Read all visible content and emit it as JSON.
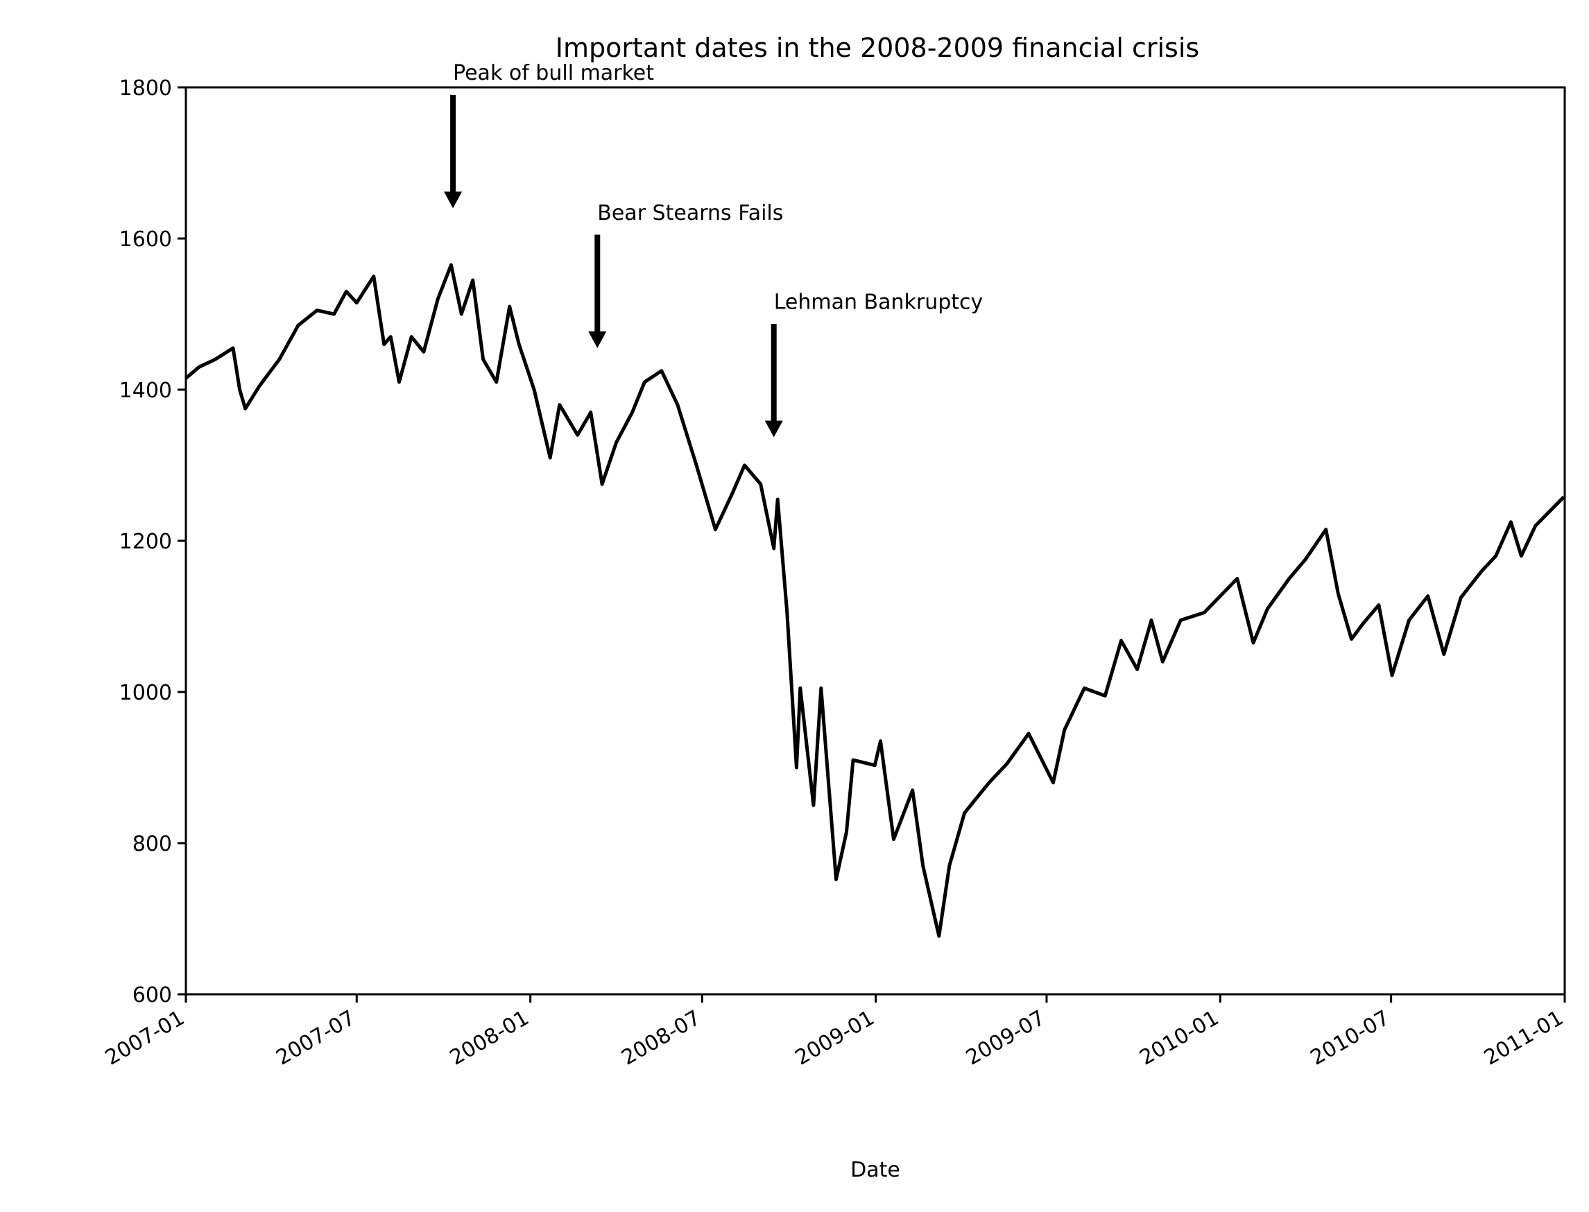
{
  "chart_data": {
    "type": "line",
    "title": "Important dates in the 2008-2009 financial crisis",
    "xlabel": "Date",
    "ylabel": "",
    "xlim": [
      "2007-01-01",
      "2011-01-01"
    ],
    "ylim": [
      600,
      1800
    ],
    "x_ticks": [
      "2007-01",
      "2007-07",
      "2008-01",
      "2008-07",
      "2009-01",
      "2009-07",
      "2010-01",
      "2010-07",
      "2011-01"
    ],
    "y_ticks": [
      600,
      800,
      1000,
      1200,
      1400,
      1600,
      1800
    ],
    "grid": false,
    "line_color": "#000000",
    "series": [
      {
        "name": "",
        "points": [
          [
            "2007-01-01",
            1415
          ],
          [
            "2007-01-15",
            1430
          ],
          [
            "2007-02-01",
            1440
          ],
          [
            "2007-02-20",
            1455
          ],
          [
            "2007-02-27",
            1400
          ],
          [
            "2007-03-05",
            1375
          ],
          [
            "2007-03-20",
            1405
          ],
          [
            "2007-04-10",
            1440
          ],
          [
            "2007-04-30",
            1485
          ],
          [
            "2007-05-20",
            1505
          ],
          [
            "2007-06-07",
            1500
          ],
          [
            "2007-06-20",
            1530
          ],
          [
            "2007-07-01",
            1515
          ],
          [
            "2007-07-19",
            1550
          ],
          [
            "2007-07-30",
            1460
          ],
          [
            "2007-08-06",
            1470
          ],
          [
            "2007-08-15",
            1410
          ],
          [
            "2007-08-28",
            1470
          ],
          [
            "2007-09-10",
            1450
          ],
          [
            "2007-09-25",
            1520
          ],
          [
            "2007-10-09",
            1565
          ],
          [
            "2007-10-20",
            1500
          ],
          [
            "2007-11-01",
            1545
          ],
          [
            "2007-11-12",
            1440
          ],
          [
            "2007-11-26",
            1410
          ],
          [
            "2007-12-10",
            1510
          ],
          [
            "2007-12-20",
            1460
          ],
          [
            "2008-01-05",
            1400
          ],
          [
            "2008-01-22",
            1310
          ],
          [
            "2008-02-01",
            1380
          ],
          [
            "2008-02-20",
            1340
          ],
          [
            "2008-03-05",
            1370
          ],
          [
            "2008-03-17",
            1275
          ],
          [
            "2008-04-01",
            1330
          ],
          [
            "2008-04-18",
            1370
          ],
          [
            "2008-05-01",
            1410
          ],
          [
            "2008-05-19",
            1425
          ],
          [
            "2008-06-05",
            1380
          ],
          [
            "2008-06-25",
            1300
          ],
          [
            "2008-07-15",
            1215
          ],
          [
            "2008-08-01",
            1260
          ],
          [
            "2008-08-15",
            1300
          ],
          [
            "2008-09-01",
            1275
          ],
          [
            "2008-09-15",
            1190
          ],
          [
            "2008-09-19",
            1255
          ],
          [
            "2008-09-29",
            1105
          ],
          [
            "2008-10-09",
            900
          ],
          [
            "2008-10-13",
            1005
          ],
          [
            "2008-10-27",
            850
          ],
          [
            "2008-11-04",
            1005
          ],
          [
            "2008-11-20",
            752
          ],
          [
            "2008-12-01",
            815
          ],
          [
            "2008-12-08",
            910
          ],
          [
            "2008-12-31",
            903
          ],
          [
            "2009-01-06",
            935
          ],
          [
            "2009-01-20",
            805
          ],
          [
            "2009-02-09",
            870
          ],
          [
            "2009-02-20",
            770
          ],
          [
            "2009-03-09",
            677
          ],
          [
            "2009-03-20",
            770
          ],
          [
            "2009-04-05",
            840
          ],
          [
            "2009-05-01",
            880
          ],
          [
            "2009-05-20",
            905
          ],
          [
            "2009-06-12",
            945
          ],
          [
            "2009-07-08",
            880
          ],
          [
            "2009-07-20",
            950
          ],
          [
            "2009-08-10",
            1005
          ],
          [
            "2009-09-01",
            995
          ],
          [
            "2009-09-18",
            1068
          ],
          [
            "2009-10-05",
            1030
          ],
          [
            "2009-10-20",
            1095
          ],
          [
            "2009-11-01",
            1040
          ],
          [
            "2009-11-20",
            1095
          ],
          [
            "2009-12-15",
            1105
          ],
          [
            "2010-01-19",
            1150
          ],
          [
            "2010-02-05",
            1065
          ],
          [
            "2010-02-20",
            1110
          ],
          [
            "2010-03-15",
            1150
          ],
          [
            "2010-04-01",
            1175
          ],
          [
            "2010-04-23",
            1215
          ],
          [
            "2010-05-06",
            1130
          ],
          [
            "2010-05-20",
            1070
          ],
          [
            "2010-06-01",
            1090
          ],
          [
            "2010-06-18",
            1115
          ],
          [
            "2010-07-02",
            1022
          ],
          [
            "2010-07-20",
            1095
          ],
          [
            "2010-08-09",
            1127
          ],
          [
            "2010-08-26",
            1050
          ],
          [
            "2010-09-13",
            1125
          ],
          [
            "2010-10-05",
            1160
          ],
          [
            "2010-10-20",
            1180
          ],
          [
            "2010-11-05",
            1225
          ],
          [
            "2010-11-16",
            1180
          ],
          [
            "2010-12-01",
            1220
          ],
          [
            "2010-12-31",
            1258
          ]
        ]
      }
    ],
    "annotations": [
      {
        "label": "Peak of bull market",
        "date": "2007-10-11",
        "value": 1565
      },
      {
        "label": "Bear Stearns Fails",
        "date": "2008-03-12",
        "value": 1380
      },
      {
        "label": "Lehman Bankruptcy",
        "date": "2008-09-15",
        "value": 1262
      }
    ]
  }
}
